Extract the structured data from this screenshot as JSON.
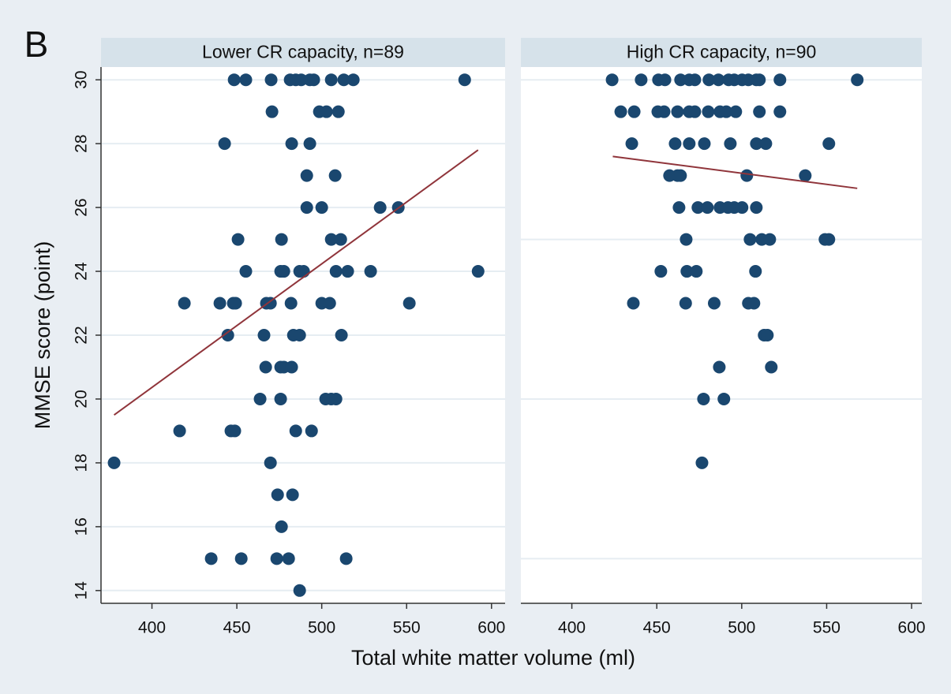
{
  "panel_label": "B",
  "x_label": "Total white matter volume (ml)",
  "y_label": "MMSE score (point)",
  "chart_data": [
    {
      "type": "scatter",
      "title": "Lower CR capacity, n=89",
      "color": "#1a476f",
      "x": [
        448.4,
        455.3,
        470.2,
        481.4,
        484.7,
        487.9,
        493,
        495.3,
        505.6,
        513,
        518.6,
        584.2,
        470.7,
        498.6,
        502.8,
        509.8,
        442.8,
        482.3,
        493,
        491.2,
        507.9,
        491.2,
        500,
        534.4,
        545.1,
        450.7,
        476.3,
        505.6,
        511.2,
        455.3,
        475.8,
        477.7,
        487,
        489.3,
        508.4,
        515.3,
        528.8,
        592.1,
        419.1,
        440,
        447.9,
        449.3,
        467.4,
        469.8,
        481.9,
        500,
        504.7,
        551.6,
        444.7,
        466,
        483.3,
        487,
        511.6,
        467,
        475.8,
        477.7,
        482.3,
        463.7,
        475.8,
        502.3,
        505.6,
        508.4,
        416.3,
        446.5,
        448.8,
        484.7,
        494,
        377.7,
        469.8,
        474,
        482.8,
        476.3,
        434.9,
        452.6,
        473.5,
        480.5,
        514.4,
        487
      ],
      "y": [
        30,
        30,
        30,
        30,
        30,
        30,
        30,
        30,
        30,
        30,
        30,
        30,
        29,
        29,
        29,
        29,
        28,
        28,
        28,
        27,
        27,
        26,
        26,
        26,
        26,
        25,
        25,
        25,
        25,
        24,
        24,
        24,
        24,
        24,
        24,
        24,
        24,
        24,
        23,
        23,
        23,
        23,
        23,
        23,
        23,
        23,
        23,
        23,
        22,
        22,
        22,
        22,
        22,
        21,
        21,
        21,
        21,
        20,
        20,
        20,
        20,
        20,
        19,
        19,
        19,
        19,
        19,
        18,
        18,
        17,
        17,
        16,
        15,
        15,
        15,
        15,
        15,
        14
      ],
      "fit": {
        "color": "#90353b",
        "x": [
          377.7,
          592.1
        ],
        "y": [
          19.5,
          27.8
        ]
      },
      "xlim": [
        370,
        608
      ],
      "ylim": [
        13.6,
        30.4
      ],
      "xticks": [
        400,
        450,
        500,
        550,
        600
      ],
      "yticks": [
        14,
        16,
        18,
        20,
        22,
        24,
        26,
        28,
        30
      ],
      "grid": true
    },
    {
      "type": "scatter",
      "title": "High CR capacity, n=90",
      "color": "#1a476f",
      "x": [
        423.7,
        440.8,
        451,
        454.8,
        464,
        469.1,
        472.4,
        480.7,
        486.3,
        492.3,
        495.6,
        500.2,
        503.9,
        508.6,
        510.4,
        522.5,
        568,
        428.8,
        436.7,
        450.6,
        454.3,
        462.2,
        469.1,
        472.4,
        480.3,
        487.2,
        490.9,
        496.5,
        510.4,
        522.5,
        435.3,
        460.8,
        469.1,
        478,
        493.3,
        508.6,
        514.2,
        551.3,
        457.5,
        462.2,
        464,
        503,
        537.4,
        463.1,
        474.2,
        479.8,
        487.2,
        491.9,
        495.6,
        500.2,
        508.6,
        467.3,
        504.9,
        511.8,
        516.5,
        549,
        551.3,
        452.4,
        467.7,
        473.3,
        508.1,
        436.2,
        467,
        483.8,
        503.9,
        507.2,
        513.2,
        515.1,
        486.8,
        517.4,
        477.5,
        489.5,
        476.6
      ],
      "y": [
        30,
        30,
        30,
        30,
        30,
        30,
        30,
        30,
        30,
        30,
        30,
        30,
        30,
        30,
        30,
        30,
        30,
        29,
        29,
        29,
        29,
        29,
        29,
        29,
        29,
        29,
        29,
        29,
        29,
        29,
        28,
        28,
        28,
        28,
        28,
        28,
        28,
        28,
        27,
        27,
        27,
        27,
        27,
        26,
        26,
        26,
        26,
        26,
        26,
        26,
        26,
        25,
        25,
        25,
        25,
        25,
        25,
        24,
        24,
        24,
        24,
        23,
        23,
        23,
        23,
        23,
        22,
        22,
        21,
        21,
        20,
        20,
        18
      ],
      "fit": {
        "color": "#90353b",
        "x": [
          424.1,
          568
        ],
        "y": [
          27.6,
          26.6
        ]
      },
      "xlim": [
        370,
        606
      ],
      "ylim": [
        13.6,
        30.4
      ],
      "xticks": [
        400,
        450,
        500,
        550,
        600
      ],
      "ygrid": [
        15,
        20,
        25,
        30
      ],
      "grid": true
    }
  ]
}
